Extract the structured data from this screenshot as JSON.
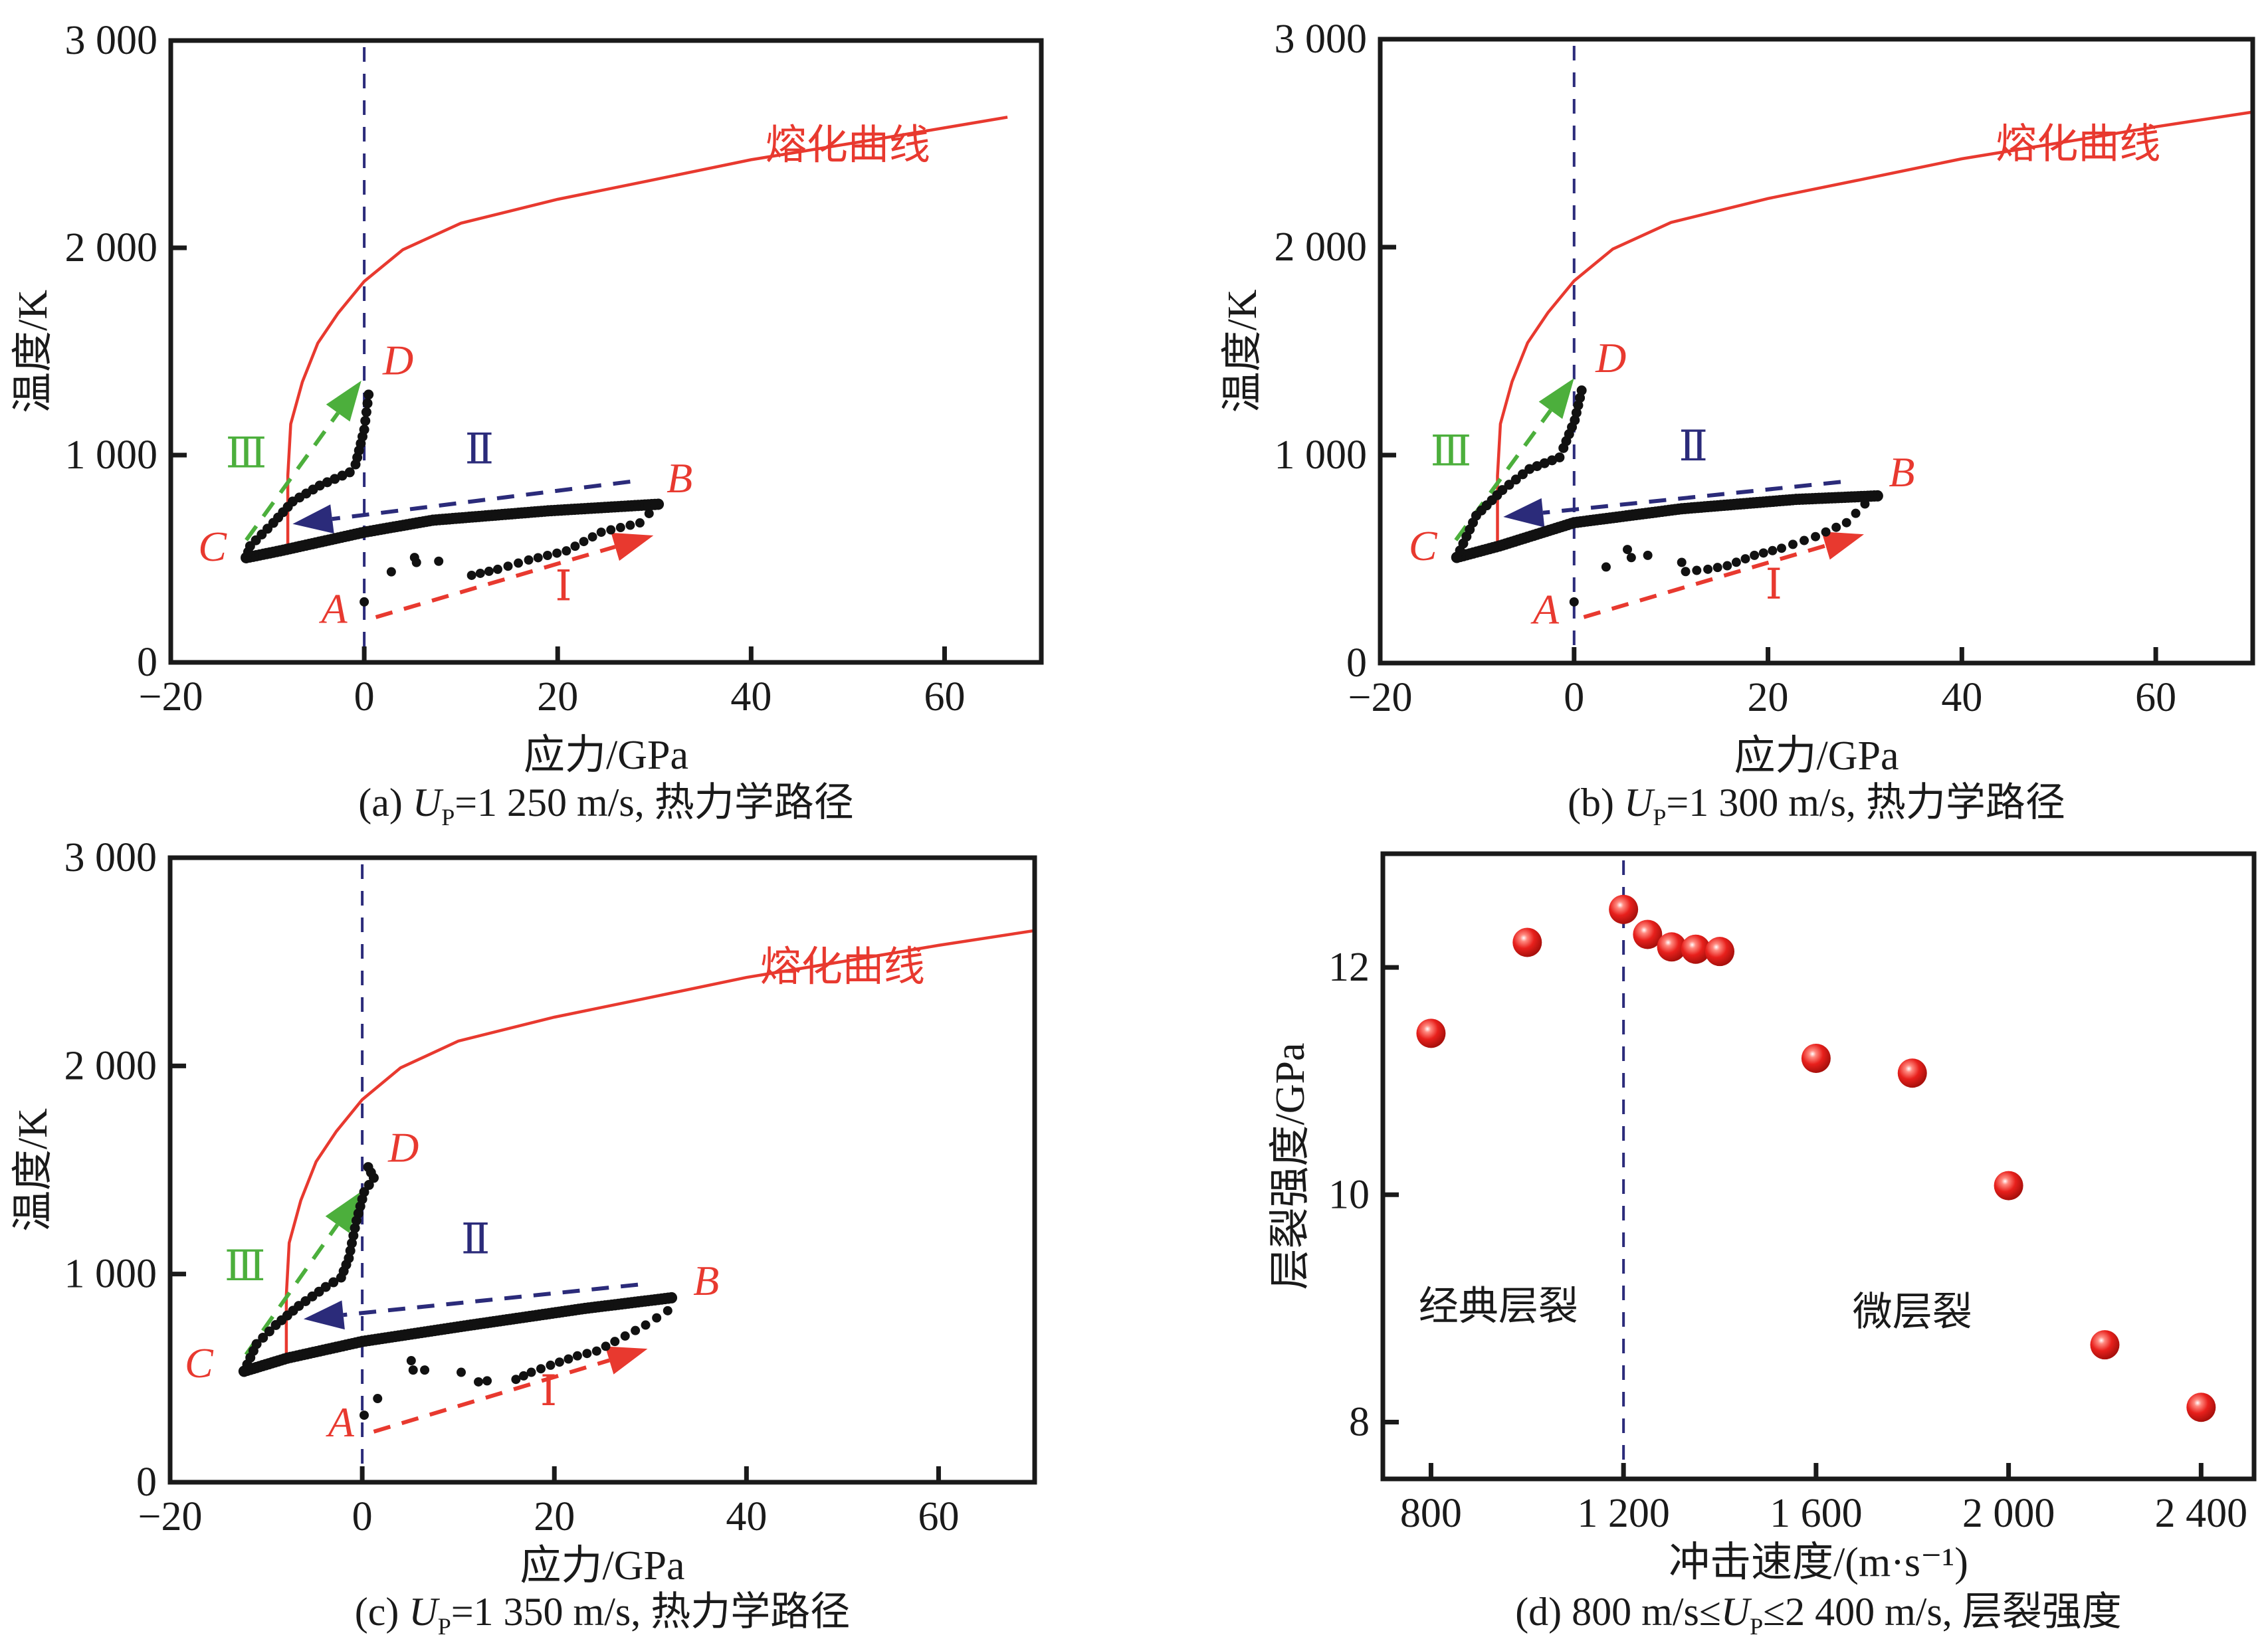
{
  "chart_data": [
    {
      "id": "a",
      "type": "scatter",
      "caption": {
        "prefix": "(a) ",
        "var": "U",
        "sub": "P",
        "suffix": "=1 250 m/s, 热力学路径"
      },
      "xlabel": "应力/GPa",
      "ylabel": "温度/K",
      "xlim": [
        -20,
        70
      ],
      "ylim": [
        0,
        3000
      ],
      "xticks": [
        -20,
        0,
        20,
        40,
        60
      ],
      "xtick_labels": [
        "−20",
        "0",
        "20",
        "40",
        "60"
      ],
      "yticks": [
        0,
        1000,
        2000,
        3000
      ],
      "ytick_labels": [
        "0",
        "1 000",
        "2 000",
        "3 000"
      ],
      "reference_line_x": 0,
      "melting_curve": {
        "label": "熔化曲线",
        "label_at": [
          50,
          2430
        ],
        "x": [
          -7.9,
          -7.9,
          -7.6,
          -6.4,
          -4.8,
          -2.7,
          0,
          4,
          10,
          20,
          29.4,
          40,
          51.8,
          60,
          66.5
        ],
        "y": [
          560,
          900,
          1150,
          1353,
          1540,
          1685,
          1838,
          1991,
          2119,
          2234,
          2323,
          2425,
          2515,
          2579,
          2630
        ]
      },
      "path": {
        "point_A": [
          0,
          292
        ],
        "scatter": [
          [
            2.8,
            437
          ],
          [
            5.2,
            506
          ],
          [
            5.4,
            482
          ],
          [
            7.7,
            488
          ]
        ],
        "loading": {
          "x": [
            11.1,
            13.8,
            17,
            20.9,
            24.5,
            28.5,
            30.4
          ],
          "y": [
            420,
            449,
            494,
            538,
            628,
            673,
            763
          ]
        },
        "unloading": {
          "x": [
            30.4,
            19,
            7.1,
            0,
            -8.7,
            -12.2
          ],
          "y": [
            763,
            731,
            686,
            628,
            538,
            505
          ]
        },
        "reloading": {
          "x": [
            -12.2,
            -11.8,
            -9.4,
            -7.4,
            -4.6,
            -1.5,
            -0.9,
            0,
            0.45
          ],
          "y": [
            505,
            561,
            673,
            776,
            853,
            917,
            955,
            1123,
            1292
          ]
        }
      },
      "arrows": [
        {
          "name": "I",
          "color": "#e8392f",
          "from": [
            1.2,
            218
          ],
          "to": [
            29.9,
            612
          ]
        },
        {
          "name": "II",
          "color": "#2b2b7a",
          "from": [
            27.5,
            872
          ],
          "to": [
            -7.4,
            668
          ]
        },
        {
          "name": "III",
          "color": "#4caf3c",
          "from": [
            -12.2,
            590
          ],
          "to": [
            -0.3,
            1359
          ]
        }
      ],
      "point_labels": [
        {
          "text": "A",
          "at": [
            -3.1,
            190
          ]
        },
        {
          "text": "B",
          "at": [
            32.6,
            820
          ]
        },
        {
          "text": "C",
          "at": [
            -15.7,
            490
          ]
        },
        {
          "text": "D",
          "at": [
            3.5,
            1390
          ]
        }
      ],
      "stage_labels": [
        {
          "text": "Ⅰ",
          "at": [
            20.6,
            300
          ],
          "color": "#e8392f"
        },
        {
          "text": "Ⅱ",
          "at": [
            11.9,
            960
          ],
          "color": "#2b2b7a"
        },
        {
          "text": "Ⅲ",
          "at": [
            -12.2,
            940
          ],
          "color": "#4caf3c"
        }
      ]
    },
    {
      "id": "b",
      "type": "scatter",
      "caption": {
        "prefix": "(b) ",
        "var": "U",
        "sub": "P",
        "suffix": "=1 300 m/s, 热力学路径"
      },
      "xlabel": "应力/GPa",
      "ylabel": "温度/K",
      "xlim": [
        -20,
        70
      ],
      "ylim": [
        0,
        3000
      ],
      "xticks": [
        -20,
        0,
        20,
        40,
        60
      ],
      "xtick_labels": [
        "−20",
        "0",
        "20",
        "40",
        "60"
      ],
      "yticks": [
        0,
        1000,
        2000,
        3000
      ],
      "ytick_labels": [
        "0",
        "1 000",
        "2 000",
        "3 000"
      ],
      "reference_line_x": 0,
      "melting_curve": {
        "label": "熔化曲线",
        "label_at": [
          52,
          2430
        ],
        "x": [
          -7.9,
          -7.9,
          -7.6,
          -6.4,
          -4.8,
          -2.7,
          0,
          4,
          10,
          20,
          29.4,
          40,
          51.8,
          60,
          70
        ],
        "y": [
          570,
          900,
          1150,
          1353,
          1540,
          1685,
          1838,
          1991,
          2119,
          2234,
          2323,
          2425,
          2515,
          2579,
          2650
        ]
      },
      "path": {
        "point_A": [
          0,
          294
        ],
        "scatter": [
          [
            3.3,
            462
          ],
          [
            5.5,
            546
          ],
          [
            5.9,
            507
          ],
          [
            7.6,
            518
          ],
          [
            11.1,
            484
          ]
        ],
        "loading": {
          "x": [
            11.5,
            13.8,
            15.8,
            18.6,
            21.4,
            24.9,
            28.1,
            30.0,
            31.3
          ],
          "y": [
            440,
            451,
            468,
            518,
            552,
            608,
            675,
            765,
            804
          ]
        },
        "unloading": {
          "x": [
            31.3,
            22.9,
            11.1,
            0,
            -7.7,
            -12.1
          ],
          "y": [
            804,
            787,
            742,
            675,
            563,
            508
          ]
        },
        "reloading": {
          "x": [
            -12.1,
            -10.1,
            -7.4,
            -4.6,
            -1.5,
            -1.1,
            0.07,
            0.78
          ],
          "y": [
            508,
            709,
            832,
            933,
            989,
            1034,
            1168,
            1311
          ]
        }
      },
      "arrows": [
        {
          "name": "I",
          "color": "#e8392f",
          "from": [
            1.0,
            221
          ],
          "to": [
            29.9,
            619
          ]
        },
        {
          "name": "II",
          "color": "#2b2b7a",
          "from": [
            27.5,
            871
          ],
          "to": [
            -7.3,
            703
          ]
        },
        {
          "name": "III",
          "color": "#4caf3c",
          "from": [
            -12.2,
            591
          ],
          "to": [
            0,
            1370
          ]
        }
      ],
      "point_labels": [
        {
          "text": "A",
          "at": [
            -2.9,
            190
          ]
        },
        {
          "text": "B",
          "at": [
            33.8,
            850
          ]
        },
        {
          "text": "C",
          "at": [
            -15.6,
            495
          ]
        },
        {
          "text": "D",
          "at": [
            3.8,
            1400
          ]
        }
      ],
      "stage_labels": [
        {
          "text": "Ⅰ",
          "at": [
            20.6,
            310
          ],
          "color": "#e8392f"
        },
        {
          "text": "Ⅱ",
          "at": [
            12.3,
            975
          ],
          "color": "#2b2b7a"
        },
        {
          "text": "Ⅲ",
          "at": [
            -12.7,
            950
          ],
          "color": "#4caf3c"
        }
      ]
    },
    {
      "id": "c",
      "type": "scatter",
      "caption": {
        "prefix": "(c) ",
        "var": "U",
        "sub": "P",
        "suffix": "=1 350 m/s, 热力学路径"
      },
      "xlabel": "应力/GPa",
      "ylabel": "温度/K",
      "xlim": [
        -20,
        70
      ],
      "ylim": [
        0,
        3000
      ],
      "xticks": [
        -20,
        0,
        20,
        40,
        60
      ],
      "xtick_labels": [
        "−20",
        "0",
        "20",
        "40",
        "60"
      ],
      "yticks": [
        0,
        1000,
        2000,
        3000
      ],
      "ytick_labels": [
        "0",
        "1 000",
        "2 000",
        "3 000"
      ],
      "reference_line_x": 0,
      "melting_curve": {
        "label": "熔化曲线",
        "label_at": [
          50,
          2410
        ],
        "x": [
          -7.9,
          -7.9,
          -7.6,
          -6.4,
          -4.8,
          -2.7,
          0,
          4,
          10,
          20,
          29.4,
          40,
          51.8,
          60,
          70
        ],
        "y": [
          570,
          900,
          1150,
          1353,
          1540,
          1685,
          1838,
          1991,
          2119,
          2234,
          2323,
          2425,
          2515,
          2579,
          2650
        ]
      },
      "path": {
        "point_A": [
          0.2,
          322
        ],
        "scatter": [
          [
            1.6,
            402
          ],
          [
            5.1,
            584
          ],
          [
            5.3,
            539
          ],
          [
            6.5,
            539
          ],
          [
            10.3,
            528
          ],
          [
            12.1,
            482
          ],
          [
            13.0,
            487
          ]
        ],
        "loading": {
          "x": [
            16.0,
            17.6,
            19.6,
            22.4,
            24.4,
            26.3,
            29.5,
            31.8,
            32.2
          ],
          "y": [
            494,
            528,
            562,
            607,
            630,
            676,
            755,
            824,
            886
          ]
        },
        "unloading": {
          "x": [
            32.2,
            23.2,
            11.3,
            0,
            -7.8,
            -12.3
          ],
          "y": [
            886,
            835,
            755,
            676,
            596,
            533
          ]
        },
        "reloading": {
          "x": [
            -12.3,
            -11.0,
            -9.0,
            -6.6,
            -3.8,
            -2.2,
            -1.4,
            -0.6,
            0.2,
            1.2,
            0.62
          ],
          "y": [
            533,
            664,
            755,
            847,
            938,
            983,
            1076,
            1257,
            1394,
            1462,
            1514
          ]
        }
      },
      "arrows": [
        {
          "name": "I",
          "color": "#e8392f",
          "from": [
            1.2,
            243
          ],
          "to": [
            29.7,
            641
          ]
        },
        {
          "name": "II",
          "color": "#2b2b7a",
          "from": [
            28.7,
            949
          ],
          "to": [
            -6.1,
            784
          ]
        },
        {
          "name": "III",
          "color": "#4caf3c",
          "from": [
            -12.1,
            613
          ],
          "to": [
            -0.2,
            1394
          ]
        }
      ],
      "point_labels": [
        {
          "text": "A",
          "at": [
            -2.2,
            220
          ]
        },
        {
          "text": "B",
          "at": [
            35.8,
            900
          ]
        },
        {
          "text": "C",
          "at": [
            -17.0,
            505
          ]
        },
        {
          "text": "D",
          "at": [
            4.3,
            1540
          ]
        }
      ],
      "stage_labels": [
        {
          "text": "Ⅰ",
          "at": [
            19.4,
            370
          ],
          "color": "#e8392f"
        },
        {
          "text": "Ⅱ",
          "at": [
            11.8,
            1100
          ],
          "color": "#2b2b7a"
        },
        {
          "text": "Ⅲ",
          "at": [
            -12.2,
            970
          ],
          "color": "#4caf3c"
        }
      ]
    },
    {
      "id": "d",
      "type": "scatter",
      "caption": {
        "prefix": "(d) 800 m/s≤",
        "var": "U",
        "sub": "P",
        "suffix": "≤2 400 m/s, 层裂强度"
      },
      "xlabel": "冲击速度/(m·s⁻¹)",
      "ylabel": "层裂强度/GPa",
      "xlim": [
        700,
        2510
      ],
      "ylim": [
        7.5,
        13
      ],
      "xticks": [
        800,
        1200,
        1600,
        2000,
        2400
      ],
      "xtick_labels": [
        "800",
        "1 200",
        "1 600",
        "2 000",
        "2 400"
      ],
      "yticks": [
        8,
        10,
        12
      ],
      "ytick_labels": [
        "8",
        "10",
        "12"
      ],
      "reference_line_x": 1200,
      "x": [
        800,
        1000,
        1200,
        1250,
        1300,
        1350,
        1400,
        1600,
        1800,
        2000,
        2200,
        2400
      ],
      "y": [
        11.42,
        12.22,
        12.51,
        12.29,
        12.18,
        12.16,
        12.14,
        11.2,
        11.07,
        10.08,
        8.68,
        8.13
      ],
      "marker_color": "#e8201c",
      "region_labels": [
        {
          "text": "经典层裂",
          "at": [
            940,
            8.9
          ]
        },
        {
          "text": "微层裂",
          "at": [
            1800,
            8.85
          ]
        }
      ]
    }
  ]
}
